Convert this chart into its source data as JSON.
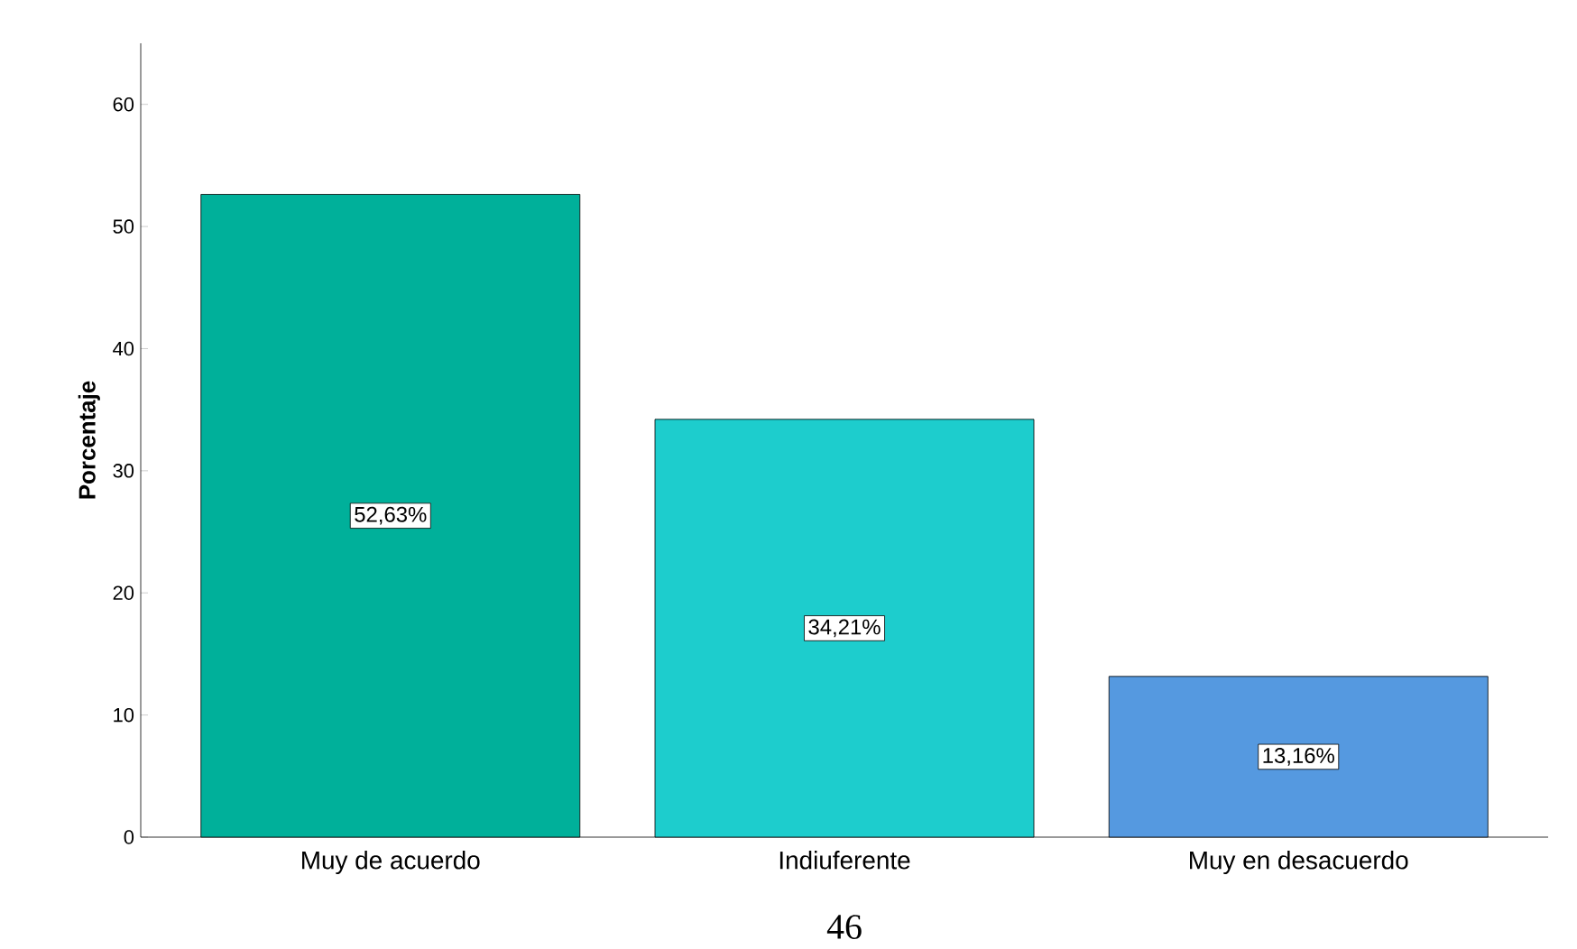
{
  "chart_data": {
    "type": "bar",
    "ylabel": "Porcentaje",
    "categories": [
      "Muy de acuerdo",
      "Indiuferente",
      "Muy en desacuerdo"
    ],
    "values": [
      52.63,
      34.21,
      13.16
    ],
    "colors": [
      "#00b09a",
      "#1dcdcd",
      "#5599e0"
    ],
    "value_labels": [
      "52,63%",
      "34,21%",
      "13,16%"
    ],
    "ylim": [
      0,
      65
    ],
    "yticks": [
      0,
      10,
      20,
      30,
      40,
      50,
      60
    ],
    "annotations": [
      "46"
    ]
  }
}
